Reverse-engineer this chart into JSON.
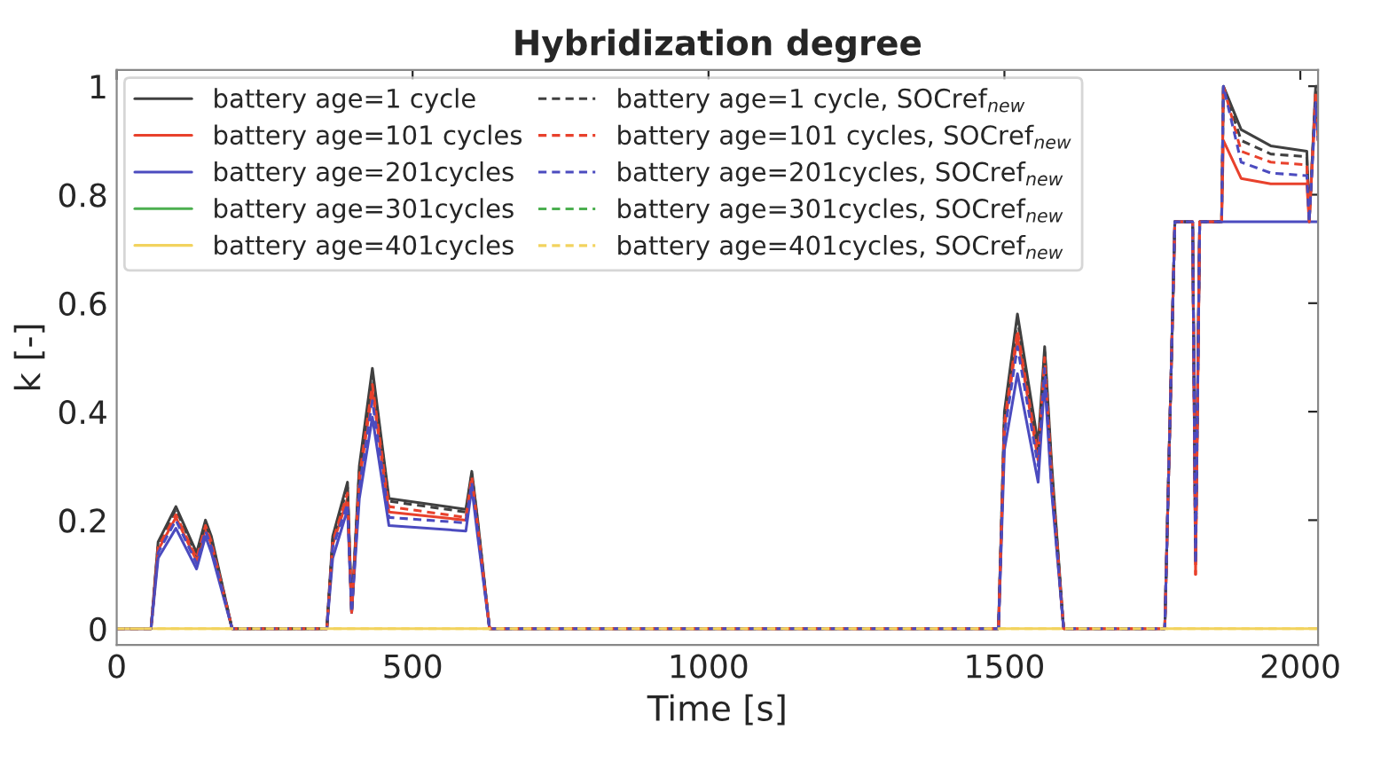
{
  "chart_data": {
    "type": "line",
    "title": "Hybridization degree",
    "xlabel": "Time [s]",
    "ylabel": "k [-]",
    "x": [
      0,
      58,
      70,
      100,
      135,
      150,
      160,
      195,
      355,
      365,
      390,
      397,
      410,
      432,
      460,
      590,
      600,
      610,
      630,
      1490,
      1500,
      1522,
      1557,
      1568,
      1580,
      1600,
      1771,
      1788,
      1818,
      1823,
      1830,
      1867,
      1870,
      1900,
      1950,
      2011,
      2015,
      2026,
      2030
    ],
    "series": [
      {
        "name": "battery age=1 cycle",
        "color": "#404040",
        "line_style": "solid",
        "values": [
          0,
          0,
          0.16,
          0.225,
          0.14,
          0.2,
          0.17,
          0,
          0,
          0.17,
          0.27,
          0.03,
          0.3,
          0.48,
          0.24,
          0.22,
          0.29,
          0.2,
          0,
          0,
          0.4,
          0.58,
          0.34,
          0.52,
          0.3,
          0,
          0,
          0.75,
          0.75,
          0.15,
          0.75,
          0.75,
          1.0,
          0.92,
          0.89,
          0.88,
          0.75,
          1.0,
          1.0
        ]
      },
      {
        "name": "battery age=101 cycles",
        "color": "#e8412c",
        "line_style": "solid",
        "values": [
          0,
          0,
          0.145,
          0.205,
          0.125,
          0.185,
          0.155,
          0,
          0,
          0.155,
          0.24,
          0.03,
          0.27,
          0.44,
          0.215,
          0.2,
          0.275,
          0.185,
          0,
          0,
          0.37,
          0.54,
          0.31,
          0.49,
          0.27,
          0,
          0,
          0.75,
          0.75,
          0.1,
          0.75,
          0.75,
          0.9,
          0.83,
          0.82,
          0.82,
          0.75,
          0.98,
          0.9
        ]
      },
      {
        "name": "battery age=201cycles",
        "color": "#4b4bbf",
        "line_style": "solid",
        "values": [
          0,
          0,
          0.13,
          0.185,
          0.11,
          0.17,
          0.14,
          0,
          0,
          0.13,
          0.22,
          0.03,
          0.24,
          0.39,
          0.19,
          0.18,
          0.26,
          0.17,
          0,
          0,
          0.33,
          0.47,
          0.27,
          0.46,
          0.25,
          0,
          0,
          0.75,
          0.75,
          0.14,
          0.75,
          0.75,
          0.75,
          0.75,
          0.75,
          0.75,
          0.75,
          0.75,
          0.75
        ]
      },
      {
        "name": "battery age=301cycles",
        "color": "#4caf50",
        "line_style": "solid",
        "values": [
          null,
          null,
          null,
          null,
          null,
          null,
          null,
          null,
          null,
          null,
          null,
          null,
          null,
          null,
          null,
          null,
          null,
          null,
          null,
          null,
          null,
          null,
          null,
          null,
          null,
          null,
          null,
          null,
          null,
          null,
          null,
          null,
          null,
          null,
          null,
          null,
          null,
          null,
          null
        ]
      },
      {
        "name": "battery age=401cycles",
        "color": "#f2d35e",
        "line_style": "solid",
        "values": [
          0,
          0,
          0,
          0,
          0,
          0,
          0,
          0,
          0,
          0,
          0,
          0,
          0,
          0,
          0,
          0,
          0,
          0,
          0,
          0,
          0,
          0,
          0,
          0,
          0,
          0,
          0,
          0,
          0,
          0,
          0,
          0,
          0,
          0,
          0,
          0,
          0,
          0,
          0
        ]
      },
      {
        "name": "battery age=1 cycle, SOCref$_{new}$",
        "color": "#404040",
        "line_style": "dashed",
        "values": [
          0,
          0,
          0.155,
          0.22,
          0.135,
          0.195,
          0.165,
          0,
          0,
          0.165,
          0.26,
          0.03,
          0.29,
          0.47,
          0.235,
          0.215,
          0.285,
          0.195,
          0,
          0,
          0.39,
          0.57,
          0.33,
          0.51,
          0.29,
          0,
          0,
          0.75,
          0.75,
          0.12,
          0.75,
          0.75,
          1.0,
          0.9,
          0.875,
          0.87,
          0.75,
          0.99,
          0.94
        ]
      },
      {
        "name": "battery age=101 cycles, SOCref$_{new}$",
        "color": "#e8412c",
        "line_style": "dashed",
        "values": [
          0,
          0,
          0.15,
          0.21,
          0.13,
          0.19,
          0.16,
          0,
          0,
          0.16,
          0.25,
          0.03,
          0.28,
          0.45,
          0.225,
          0.205,
          0.28,
          0.19,
          0,
          0,
          0.38,
          0.55,
          0.32,
          0.5,
          0.28,
          0,
          0,
          0.75,
          0.75,
          0.1,
          0.75,
          0.75,
          1.0,
          0.88,
          0.86,
          0.855,
          0.75,
          0.99,
          0.93
        ]
      },
      {
        "name": "battery age=201cycles, SOCref$_{new}$",
        "color": "#4b4bbf",
        "line_style": "dashed",
        "values": [
          0,
          0,
          0.14,
          0.2,
          0.12,
          0.18,
          0.15,
          0,
          0,
          0.15,
          0.23,
          0.03,
          0.26,
          0.42,
          0.205,
          0.195,
          0.27,
          0.18,
          0,
          0,
          0.36,
          0.52,
          0.3,
          0.48,
          0.26,
          0,
          0,
          0.75,
          0.75,
          0.12,
          0.75,
          0.75,
          1.0,
          0.86,
          0.84,
          0.835,
          0.75,
          0.97,
          0.9
        ]
      },
      {
        "name": "battery age=301cycles, SOCref$_{new}$",
        "color": "#4caf50",
        "line_style": "dashed",
        "values": [
          null,
          null,
          null,
          null,
          null,
          null,
          null,
          null,
          null,
          null,
          null,
          null,
          null,
          null,
          null,
          null,
          null,
          null,
          null,
          null,
          null,
          null,
          null,
          null,
          null,
          null,
          null,
          null,
          null,
          null,
          null,
          null,
          null,
          null,
          null,
          null,
          null,
          null,
          null
        ]
      },
      {
        "name": "battery age=401cycles, SOCref$_{new}$",
        "color": "#f2d35e",
        "line_style": "dashed",
        "values": [
          0,
          0,
          0,
          0,
          0,
          0,
          0,
          0,
          0,
          0,
          0,
          0,
          0,
          0,
          0,
          0,
          0,
          0,
          0,
          0,
          0,
          0,
          0,
          0,
          0,
          0,
          0,
          0,
          0,
          0,
          0,
          0,
          0,
          0,
          0,
          0,
          0,
          0,
          0
        ]
      }
    ],
    "xlim": [
      0,
      2030
    ],
    "ylim": [
      -0.03,
      1.03
    ],
    "xticks": [
      0,
      500,
      1000,
      1500,
      2000
    ],
    "yticks": [
      0,
      0.2,
      0.4,
      0.6,
      0.8,
      1
    ],
    "grid": false,
    "legend": "top left",
    "marker": "none"
  }
}
